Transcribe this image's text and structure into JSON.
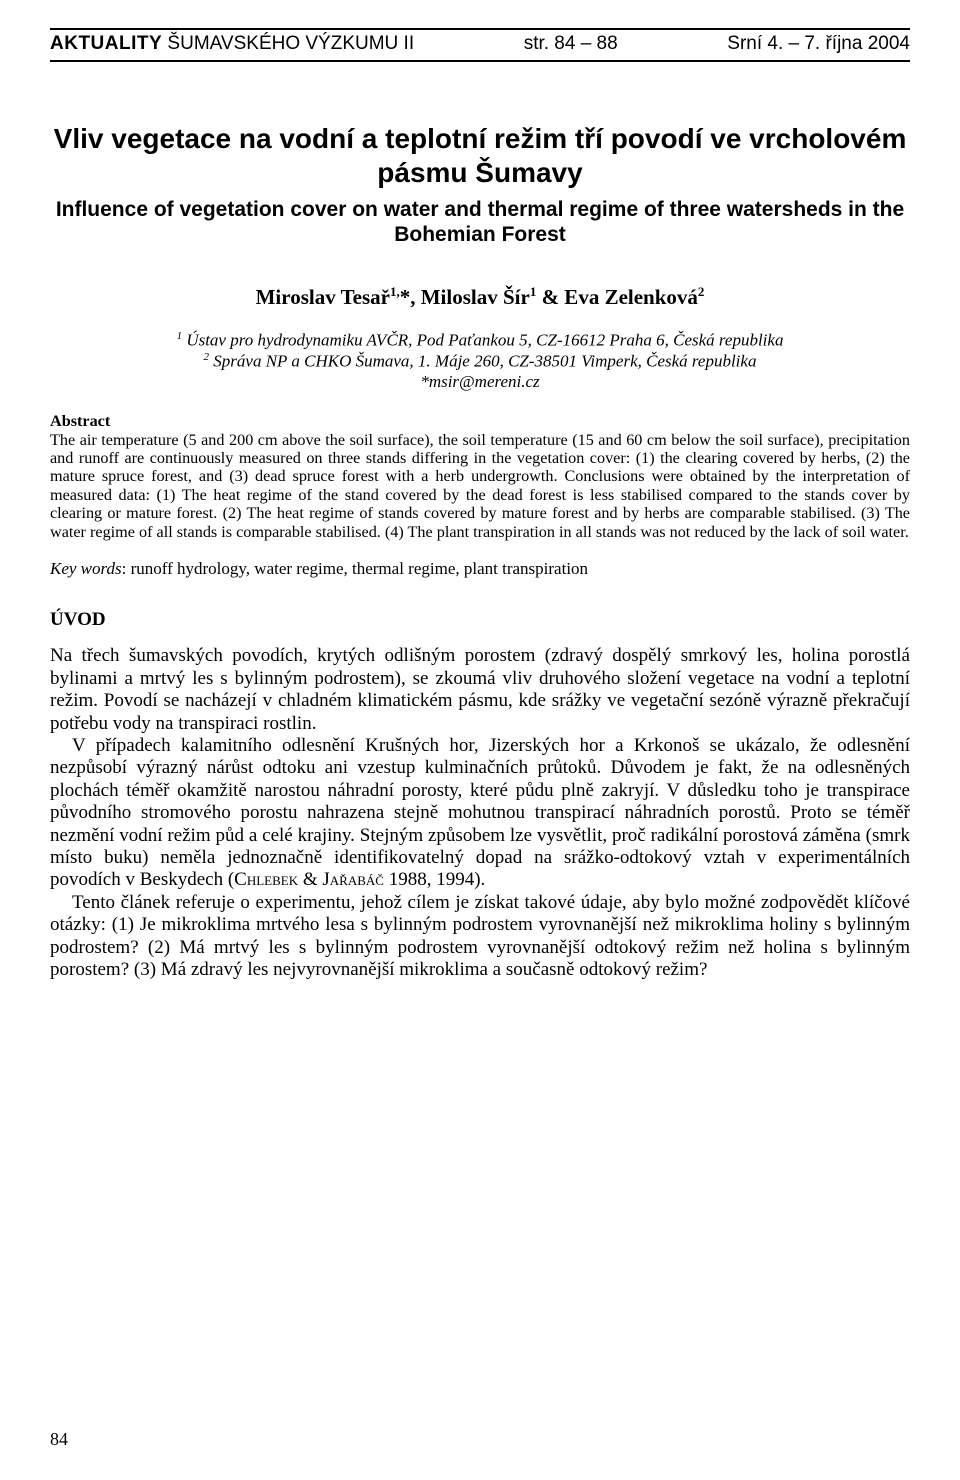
{
  "header": {
    "journal_bold": "AKTUALITY",
    "journal_rest": " ŠUMAVSKÉHO VÝZKUMU II",
    "pages": "str. 84 – 88",
    "event": "Srní 4. – 7. října 2004"
  },
  "title_cz": "Vliv vegetace na vodní a teplotní režim tří povodí ve vrcholovém pásmu Šumavy",
  "title_en": "Influence of vegetation cover on water and thermal regime of three watersheds in the Bohemian Forest",
  "authors_html": "Miroslav Tesař<sup>1,</sup>*, Miloslav Šír<sup>1</sup> & Eva Zelenková<sup>2</sup>",
  "affiliations_html": "<sup>1</sup> Ústav pro hydrodynamiku AVČR, Pod Paťankou 5, CZ-16612 Praha 6, Česká republika<br><sup>2</sup> Správa NP a CHKO Šumava, 1. Máje 260, CZ-38501 Vimperk, Česká republika<br>*msir@mereni.cz",
  "abstract": {
    "heading": "Abstract",
    "text": "The air temperature (5 and 200 cm above the soil surface), the soil temperature (15 and 60 cm below the soil surface), precipitation and runoff are continuously measured on three stands differing in the vegetation cover: (1) the clearing covered by herbs, (2) the mature spruce forest, and (3) dead spruce forest with a herb undergrowth. Conclusions were obtained by the interpretation of measured data: (1) The heat regime of the stand covered by the dead forest is less stabilised compared to the stands cover by clearing or mature forest. (2) The heat regime of stands covered by mature forest and by herbs are comparable stabilised. (3) The water regime of all stands is comparable stabilised. (4) The plant transpiration in all stands was not reduced by the lack of soil water."
  },
  "keywords": {
    "label": "Key words",
    "text": ": runoff hydrology, water regime, thermal regime, plant transpiration"
  },
  "section_heading": {
    "first": "Ú",
    "rest": "VOD"
  },
  "paragraphs": [
    "Na třech šumavských povodích, krytých odlišným porostem (zdravý dospělý smrkový les, holina porostlá bylinami a mrtvý les s bylinným podrostem), se zkoumá vliv druhového složení vegetace na vodní a teplotní režim. Povodí se nacházejí v chladném klimatickém pásmu, kde srážky ve vegetační sezóně výrazně překračují potřebu vody na transpiraci rostlin.",
    "V případech kalamitního odlesnění Krušných hor, Jizerských hor a Krkonoš se ukázalo, že odlesnění nezpůsobí výrazný nárůst odtoku ani vzestup kulminačních průtoků. Důvodem je fakt, že na odlesněných plochách téměř okamžitě narostou náhradní porosty, které půdu plně zakryjí. V důsledku toho je transpirace původního stromového porostu nahrazena stejně mohutnou transpirací náhradních porostů. Proto se téměř nezmění vodní režim půd a celé krajiny. Stejným způsobem lze vysvětlit, proč radikální porostová záměna (smrk místo buku) neměla jednoznačně identifikovatelný dopad na srážko-odtokový vztah v experimentálních povodích v Beskydech (<span class=\"sc\">Chlebek & Jařabáč</span> 1988, 1994).",
    "Tento článek referuje o experimentu, jehož cílem je získat takové údaje, aby bylo možné zodpovědět klíčové otázky: (1) Je mikroklima mrtvého lesa s bylinným podrostem vyrovnanější než mikroklima holiny s bylinným podrostem? (2) Má mrtvý les s bylinným podrostem vyrovnanější odtokový režim než holina s bylinným porostem? (3) Má zdravý les nejvyrovnanější mikroklima a současně odtokový režim?"
  ],
  "page_number": "84",
  "colors": {
    "text": "#000000",
    "background": "#ffffff",
    "rule": "#000000"
  },
  "typography": {
    "body_family": "Times New Roman",
    "heading_family": "Arial",
    "title_size_pt": 21,
    "subtitle_size_pt": 16,
    "body_size_pt": 14,
    "abstract_size_pt": 12
  }
}
